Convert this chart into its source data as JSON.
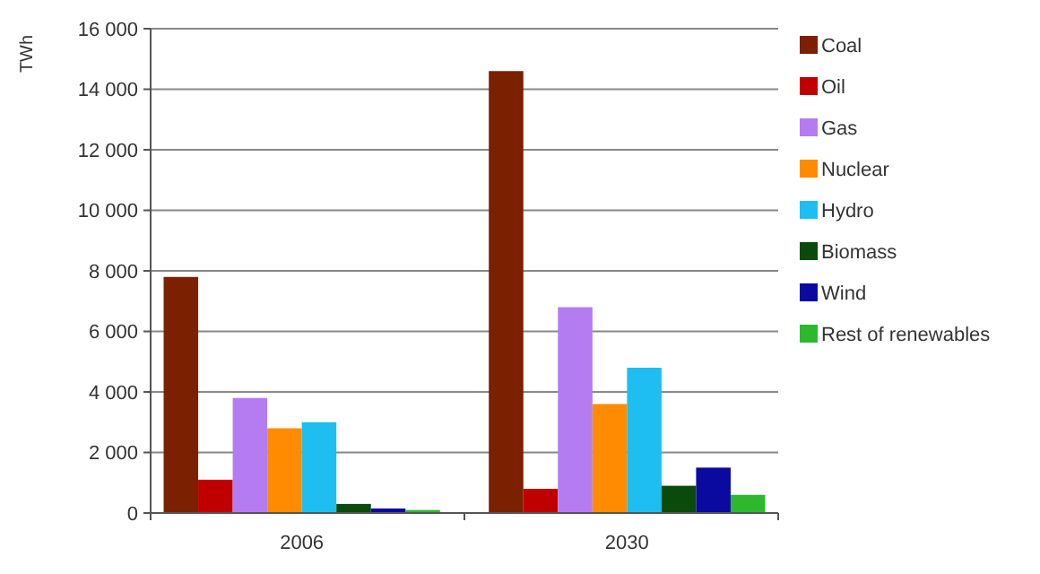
{
  "chart_data": {
    "type": "bar",
    "ylabel": "TWh",
    "categories": [
      "2006",
      "2030"
    ],
    "series": [
      {
        "name": "Coal",
        "color": "#7b2000",
        "values": [
          7800,
          14600
        ]
      },
      {
        "name": "Oil",
        "color": "#c00000",
        "values": [
          1100,
          800
        ]
      },
      {
        "name": "Gas",
        "color": "#b47cf0",
        "values": [
          3800,
          6800
        ]
      },
      {
        "name": "Nuclear",
        "color": "#ff8c00",
        "values": [
          2800,
          3600
        ]
      },
      {
        "name": "Hydro",
        "color": "#1ebef0",
        "values": [
          3000,
          4800
        ]
      },
      {
        "name": "Biomass",
        "color": "#0a4a0a",
        "values": [
          300,
          900
        ]
      },
      {
        "name": "Wind",
        "color": "#0a0aa0",
        "values": [
          150,
          1500
        ]
      },
      {
        "name": "Rest of renewables",
        "color": "#2eb82e",
        "values": [
          100,
          600
        ]
      }
    ],
    "ylim": [
      0,
      16000
    ],
    "yticks": [
      {
        "value": 0,
        "label": "0"
      },
      {
        "value": 2000,
        "label": "2 000"
      },
      {
        "value": 4000,
        "label": "4 000"
      },
      {
        "value": 6000,
        "label": "6 000"
      },
      {
        "value": 8000,
        "label": "8 000"
      },
      {
        "value": 10000,
        "label": "10 000"
      },
      {
        "value": 12000,
        "label": "12 000"
      },
      {
        "value": 14000,
        "label": "14 000"
      },
      {
        "value": 16000,
        "label": "16 000"
      }
    ],
    "grid": "y",
    "legend": "right"
  }
}
